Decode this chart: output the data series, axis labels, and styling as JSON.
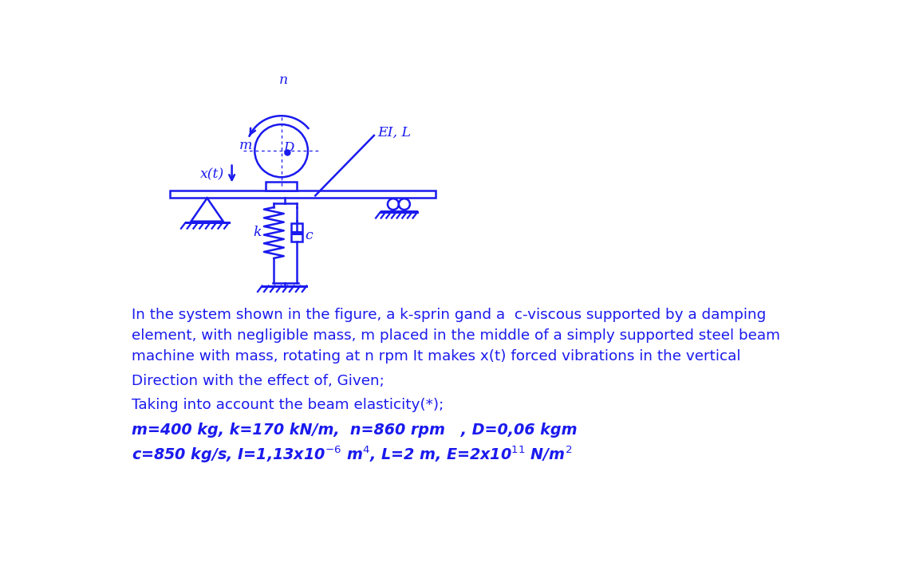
{
  "bg_color": "#ffffff",
  "text_color": "#1a1aee",
  "diagram_color": "#1a1aee",
  "line1": "In the system shown in the figure, a k-sprin gand a  c-viscous supported by a damping",
  "line2": "element, with negligible mass, m placed in the middle of a simply supported steel beam",
  "line3": "machine with mass, rotating at n rpm It makes x(t) forced vibrations in the vertical",
  "line4": "Direction with the effect of, Given;",
  "line5": "Taking into account the beam elasticity(*);",
  "figsize": [
    11.47,
    7.1
  ],
  "dpi": 100,
  "diagram_scale": 0.72
}
